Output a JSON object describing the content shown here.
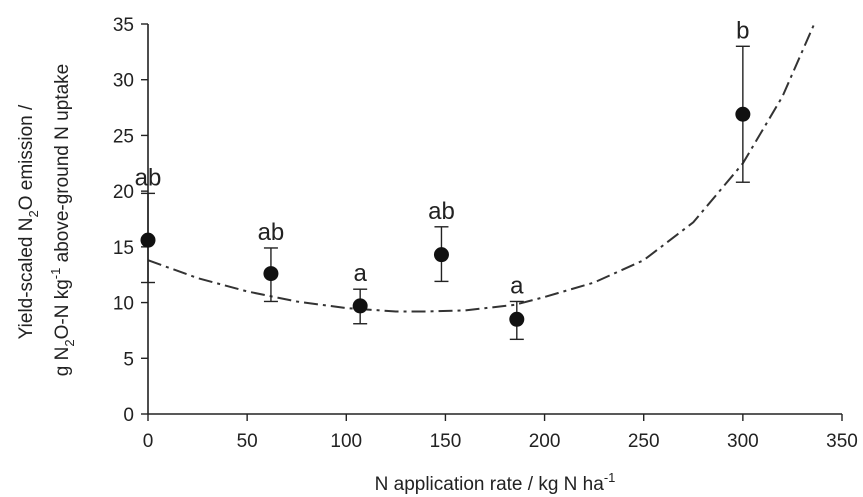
{
  "chart_data": {
    "type": "scatter",
    "xlabel": "N application rate / kg N ha",
    "xlabel_sup": "-1",
    "ylabel": {
      "line1_a": "Yield-scaled N",
      "line1_sub": "2",
      "line1_b": "O emission /",
      "line2_a": "g N",
      "line2_sub": "2",
      "line2_b": "O-N kg",
      "line2_sup": "-1",
      "line2_c": " above-ground N uptake"
    },
    "xlim": [
      0,
      350
    ],
    "ylim": [
      0,
      35
    ],
    "xticks": [
      0,
      50,
      100,
      150,
      200,
      250,
      300,
      350
    ],
    "yticks": [
      0,
      5,
      10,
      15,
      20,
      25,
      30,
      35
    ],
    "grid": false,
    "points": [
      {
        "x": 0,
        "y": 15.6,
        "err_low": 11.8,
        "err_high": 19.8,
        "label": "ab"
      },
      {
        "x": 62,
        "y": 12.6,
        "err_low": 10.1,
        "err_high": 14.9,
        "label": "ab"
      },
      {
        "x": 107,
        "y": 9.7,
        "err_low": 8.1,
        "err_high": 11.2,
        "label": "a"
      },
      {
        "x": 148,
        "y": 14.3,
        "err_low": 11.9,
        "err_high": 16.8,
        "label": "ab"
      },
      {
        "x": 186,
        "y": 8.5,
        "err_low": 6.7,
        "err_high": 10.1,
        "label": "a"
      },
      {
        "x": 300,
        "y": 26.9,
        "err_low": 20.8,
        "err_high": 33.0,
        "label": "b"
      }
    ],
    "fit_curve": {
      "style": "dash-dot",
      "x": [
        0,
        25,
        50,
        75,
        100,
        125,
        140,
        160,
        185,
        200,
        225,
        250,
        275,
        300,
        320,
        336
      ],
      "y": [
        13.8,
        12.2,
        11.0,
        10.1,
        9.5,
        9.2,
        9.2,
        9.3,
        9.8,
        10.5,
        11.8,
        13.8,
        17.2,
        22.5,
        28.5,
        35.0
      ]
    }
  }
}
